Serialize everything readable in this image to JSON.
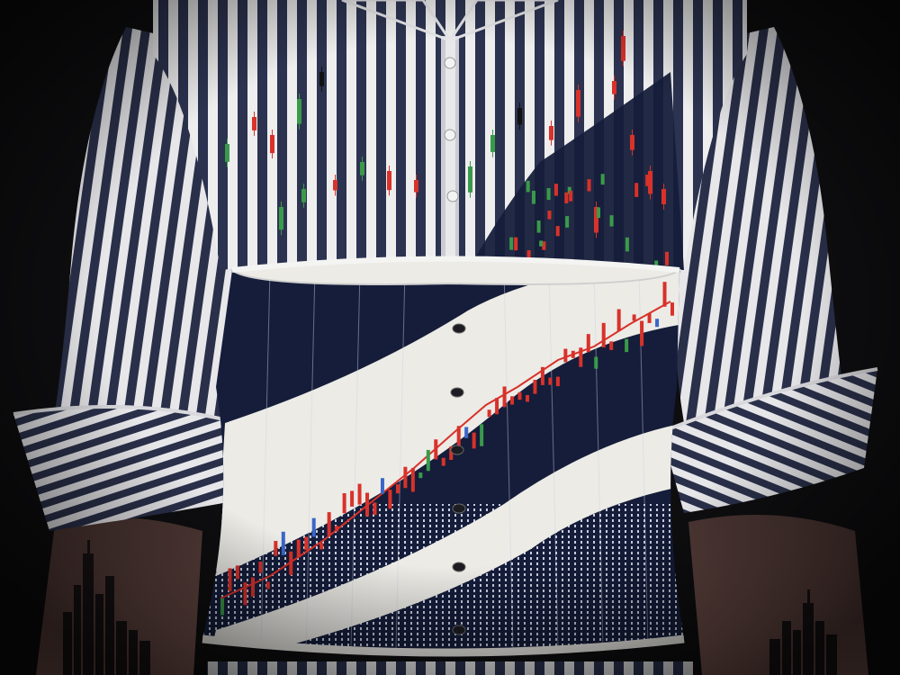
{
  "scene": {
    "subject": "striped-shirt-with-stock-chart-corset",
    "palette": {
      "background": "#0e0e10",
      "stripe_dark": "#2c3350",
      "stripe_light": "#eeeeef",
      "corset_navy": "#151d3a",
      "corset_white": "#ecebe6",
      "candle_red": "#d8322a",
      "candle_green": "#3a9a4a",
      "candle_blue": "#3a66c8",
      "skin": "#6a4a44",
      "skyline": "#1a1416"
    }
  }
}
